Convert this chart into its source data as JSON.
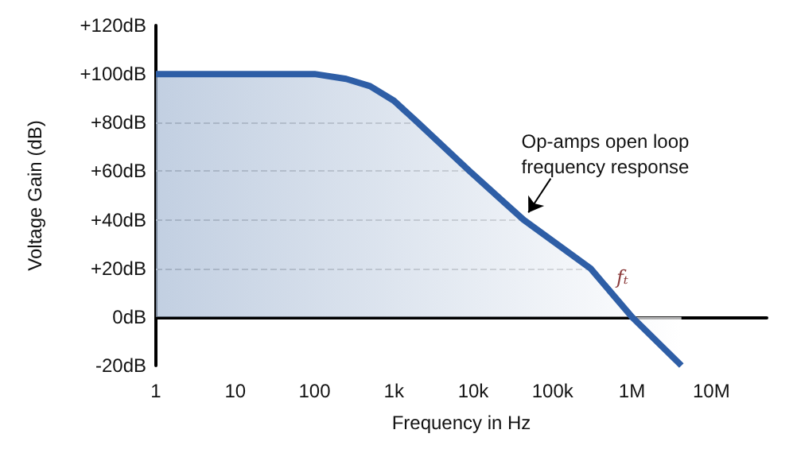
{
  "chart_data": {
    "type": "area",
    "xlabel": "Frequency in Hz",
    "ylabel": "Voltage Gain (dB)",
    "log": "x",
    "x": [
      1,
      100,
      250,
      500,
      1000,
      2000,
      9000,
      43000,
      300000,
      1000000,
      4200000
    ],
    "series": [
      {
        "color": "#2e5ea6",
        "values": [
          100,
          100,
          98,
          95,
          89,
          80,
          60,
          40,
          20,
          0,
          -20
        ]
      }
    ],
    "xlim": [
      1,
      50000000
    ],
    "xticks": [
      1,
      10,
      100,
      {
        "value": 1000,
        "label": "1k"
      },
      {
        "value": 10000,
        "label": "10k"
      },
      {
        "value": 100000,
        "label": "100k"
      },
      {
        "value": 1000000,
        "label": "1M"
      },
      {
        "value": 10000000,
        "label": "10M"
      }
    ],
    "ylim": [
      -20,
      120
    ],
    "yticks": [
      {
        "value": -20,
        "label": "-20dB"
      },
      {
        "value": 0,
        "label": "0dB"
      },
      {
        "value": 20,
        "label": "+20dB"
      },
      {
        "value": 40,
        "label": "+40dB"
      },
      {
        "value": 60,
        "label": "+60dB"
      },
      {
        "value": 80,
        "label": "+80dB"
      },
      {
        "value": 100,
        "label": "+100dB"
      },
      {
        "value": 120,
        "label": "+120dB"
      }
    ],
    "ref_lines": [
      {
        "axis": "y",
        "value": 20,
        "color": "#999999",
        "line_style": "dashed"
      },
      {
        "axis": "y",
        "value": 40,
        "color": "#999999",
        "line_style": "dashed"
      },
      {
        "axis": "y",
        "value": 60,
        "color": "#999999",
        "line_style": "dashed"
      },
      {
        "axis": "y",
        "value": 80,
        "color": "#999999",
        "line_style": "dashed"
      }
    ],
    "annotations": [
      {
        "text": "Op-amps open loop\nfrequency response",
        "x": 43000,
        "y": 40
      },
      {
        "text": "fₜ",
        "x": 1000000,
        "y": 0
      }
    ]
  }
}
